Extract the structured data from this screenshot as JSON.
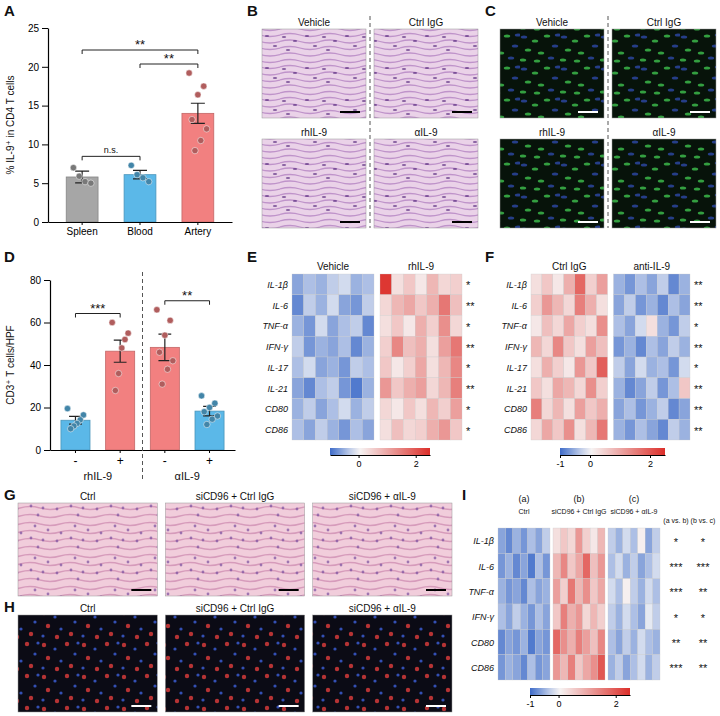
{
  "chart_data": [
    {
      "panel": "A",
      "type": "bar",
      "categories": [
        "Spleen",
        "Blood",
        "Artery"
      ],
      "values": [
        5.8,
        6.1,
        14.0
      ],
      "errors": [
        0.75,
        0.55,
        1.3
      ],
      "points": [
        [
          7.0,
          5.9,
          5.2,
          5.0
        ],
        [
          7.3,
          6.1,
          5.7,
          5.2
        ],
        [
          19.2,
          17.5,
          16.4,
          13.2,
          12.0,
          10.5,
          9.2
        ]
      ],
      "colors": [
        "#a6a6a6",
        "#5bb8e8",
        "#f28080"
      ],
      "ylabel": "% IL-9⁺ in CD4 T cells",
      "ylim": [
        0,
        25
      ],
      "yticks": [
        0,
        5,
        10,
        15,
        20,
        25
      ],
      "significance": [
        {
          "between": [
            0,
            1
          ],
          "label": "n.s."
        },
        {
          "between": [
            1,
            2
          ],
          "label": "**"
        },
        {
          "between": [
            0,
            2
          ],
          "label": "**"
        }
      ]
    },
    {
      "panel": "D",
      "type": "bar",
      "categories": [
        "-",
        "+",
        "-",
        "+"
      ],
      "group_labels": [
        "rhIL-9",
        "αIL-9"
      ],
      "values": [
        14.0,
        46.5,
        48.3,
        18.3
      ],
      "errors": [
        1.8,
        5.2,
        6.2,
        2.2
      ],
      "points": [
        [
          19.5,
          16.5,
          14.2,
          12.5,
          11.3,
          10.0
        ],
        [
          60,
          55,
          52,
          48,
          36,
          28
        ],
        [
          66,
          61,
          54,
          46,
          42,
          38,
          31
        ],
        [
          25.5,
          22,
          20,
          18,
          16,
          14.5,
          12
        ]
      ],
      "colors": [
        "#5bb8e8",
        "#f28080",
        "#f28080",
        "#5bb8e8"
      ],
      "ylabel": "CD3⁺ T cells/HPF",
      "ylim": [
        0,
        80
      ],
      "yticks": [
        0,
        20,
        40,
        60,
        80
      ],
      "significance": [
        {
          "between": [
            0,
            1
          ],
          "label": "***"
        },
        {
          "between": [
            2,
            3
          ],
          "label": "**"
        }
      ]
    },
    {
      "panel": "E",
      "type": "heatmap",
      "rows": [
        "IL-1β",
        "IL-6",
        "TNF-α",
        "IFN-γ",
        "IL-17",
        "IL-21",
        "CD80",
        "CD86"
      ],
      "groups": [
        {
          "name": "Vehicle",
          "cells": [
            [
              -0.6,
              -0.4,
              -0.5,
              -0.3,
              -0.2,
              -0.5,
              -0.4
            ],
            [
              -0.8,
              -0.3,
              -0.5,
              -0.2,
              -0.6,
              -0.7,
              -0.3
            ],
            [
              -0.5,
              -0.7,
              -0.2,
              -0.6,
              -0.4,
              -0.3,
              -0.8
            ],
            [
              -0.3,
              -0.7,
              -0.5,
              -0.6,
              -0.4,
              -0.8,
              -0.5
            ],
            [
              -0.4,
              -0.2,
              -0.6,
              -0.5,
              -0.7,
              -0.3,
              -0.4
            ],
            [
              -0.6,
              -0.8,
              -0.4,
              -0.3,
              -0.7,
              -0.9,
              -0.5
            ],
            [
              -0.5,
              -0.3,
              -0.6,
              -0.4,
              -0.2,
              -0.5,
              -0.3
            ],
            [
              -0.4,
              -0.6,
              -0.3,
              -0.5,
              -0.7,
              -0.4,
              -0.6
            ]
          ]
        },
        {
          "name": "rhIL-9",
          "cells": [
            [
              2.4,
              0.3,
              0.6,
              0.2,
              0.8,
              0.4,
              0.5
            ],
            [
              0.4,
              0.8,
              1.0,
              0.6,
              0.9,
              1.6,
              0.7
            ],
            [
              0.3,
              0.6,
              0.2,
              0.9,
              0.5,
              1.3,
              0.4
            ],
            [
              0.5,
              1.4,
              0.7,
              0.9,
              0.3,
              1.1,
              1.6
            ],
            [
              0.6,
              0.2,
              0.5,
              1.0,
              0.3,
              0.8,
              1.4
            ],
            [
              1.2,
              0.6,
              0.9,
              1.1,
              0.4,
              0.8,
              1.5
            ],
            [
              0.4,
              0.2,
              0.6,
              0.3,
              0.8,
              0.5,
              1.1
            ],
            [
              0.3,
              0.7,
              0.4,
              0.5,
              0.9,
              1.2,
              0.6
            ]
          ]
        }
      ],
      "significance": [
        "*",
        "**",
        "*",
        "**",
        "*",
        "**",
        "*",
        "*"
      ],
      "colorbar": {
        "range": [
          -1,
          2.5
        ],
        "center": 0,
        "ticks": [
          0,
          2
        ]
      }
    },
    {
      "panel": "F",
      "type": "heatmap",
      "rows": [
        "IL-1β",
        "IL-6",
        "TNF-α",
        "IFN-γ",
        "IL-17",
        "IL-21",
        "CD80",
        "CD86"
      ],
      "groups": [
        {
          "name": "Ctrl IgG",
          "cells": [
            [
              0.3,
              0.6,
              0.2,
              0.9,
              1.8,
              0.5,
              1.1
            ],
            [
              0.5,
              1.2,
              0.8,
              0.4,
              1.5,
              0.9,
              0.3
            ],
            [
              0.2,
              0.7,
              0.4,
              1.0,
              0.5,
              0.3,
              1.3
            ],
            [
              0.8,
              0.4,
              1.4,
              0.6,
              0.3,
              1.1,
              0.7
            ],
            [
              0.3,
              0.9,
              0.5,
              0.2,
              1.2,
              0.6,
              1.9
            ],
            [
              0.6,
              0.3,
              1.0,
              0.8,
              0.4,
              1.3,
              0.5
            ],
            [
              1.5,
              0.4,
              0.8,
              0.3,
              1.1,
              0.6,
              0.9
            ],
            [
              0.4,
              1.0,
              0.6,
              1.3,
              0.3,
              0.8,
              1.6
            ]
          ]
        },
        {
          "name": "anti-IL-9",
          "cells": [
            [
              -0.5,
              -0.7,
              -0.4,
              -0.6,
              -0.3,
              -0.8,
              -0.5
            ],
            [
              -0.6,
              -0.3,
              -0.7,
              -0.5,
              -0.8,
              -0.4,
              -0.6
            ],
            [
              -0.4,
              -0.6,
              -0.2,
              0.3,
              -0.5,
              -0.7,
              -0.3
            ],
            [
              -0.7,
              -0.5,
              -0.8,
              -0.4,
              -0.6,
              -0.3,
              -0.5
            ],
            [
              -0.3,
              -0.6,
              -0.2,
              -0.5,
              -0.4,
              -0.7,
              -0.2
            ],
            [
              -0.5,
              -0.8,
              -0.6,
              -0.3,
              -0.7,
              -0.4,
              0.6
            ],
            [
              -0.6,
              -0.4,
              -0.7,
              -0.5,
              -0.3,
              -0.8,
              -0.6
            ],
            [
              -0.5,
              -0.7,
              -0.4,
              -0.6,
              -0.8,
              -0.3,
              -0.5
            ]
          ]
        }
      ],
      "significance": [
        "**",
        "**",
        "*",
        "**",
        "*",
        "**",
        "**",
        "**"
      ],
      "colorbar": {
        "range": [
          -1,
          2.5
        ],
        "center": 0,
        "ticks": [
          -1,
          0,
          2
        ]
      }
    },
    {
      "panel": "I",
      "type": "heatmap",
      "rows": [
        "IL-1β",
        "IL-6",
        "TNF-α",
        "IFN-γ",
        "CD80",
        "CD86"
      ],
      "groups": [
        {
          "tag": "(a)",
          "name": "Ctrl",
          "cells": [
            [
              -0.6,
              -0.8,
              -0.5,
              -0.7,
              -0.4,
              -0.6,
              -0.3
            ],
            [
              -0.7,
              -0.5,
              -0.8,
              -0.6,
              -0.9,
              -0.4,
              -0.7
            ],
            [
              -0.5,
              -0.7,
              -0.6,
              -0.8,
              -0.4,
              -0.6,
              -0.5
            ],
            [
              -0.4,
              -0.6,
              -0.3,
              -0.5,
              -0.7,
              -0.4,
              -0.6
            ],
            [
              -0.8,
              -0.6,
              -0.7,
              -0.5,
              -0.9,
              -0.6,
              -0.7
            ],
            [
              -0.7,
              -0.5,
              -0.6,
              -0.8,
              -0.4,
              -0.7,
              -0.6
            ]
          ]
        },
        {
          "tag": "(b)",
          "name": "siCD96 + Ctrl IgG",
          "cells": [
            [
              0.3,
              0.6,
              0.4,
              1.2,
              0.5,
              0.2,
              0.8
            ],
            [
              0.8,
              1.4,
              0.6,
              1.0,
              1.8,
              0.7,
              1.2
            ],
            [
              1.1,
              0.5,
              1.6,
              0.8,
              1.3,
              0.6,
              1.0
            ],
            [
              0.6,
              1.5,
              0.9,
              1.2,
              0.4,
              0.8,
              0.5
            ],
            [
              1.8,
              1.3,
              0.9,
              1.5,
              1.1,
              0.7,
              1.4
            ],
            [
              1.2,
              0.8,
              1.5,
              0.6,
              1.0,
              1.3,
              2.0
            ]
          ]
        },
        {
          "tag": "(c)",
          "name": "siCD96 + αIL-9",
          "cells": [
            [
              -0.3,
              -0.5,
              -0.2,
              -0.4,
              0.1,
              -0.6,
              -0.3
            ],
            [
              -0.4,
              -0.2,
              -0.5,
              -0.3,
              -0.6,
              -0.4,
              -0.2
            ],
            [
              -0.2,
              -0.4,
              0.1,
              -0.3,
              -0.5,
              -0.2,
              -0.4
            ],
            [
              -0.3,
              -0.5,
              -0.2,
              -0.4,
              -0.6,
              -0.1,
              -0.3
            ],
            [
              -0.4,
              -0.6,
              -0.3,
              -0.5,
              -0.2,
              -0.4,
              -0.5
            ],
            [
              -0.5,
              -0.3,
              -0.6,
              -0.4,
              -0.2,
              -0.5,
              -0.3
            ]
          ]
        }
      ],
      "comparisons": [
        "(a vs. b)",
        "(b vs. c)"
      ],
      "significance": [
        [
          "*",
          "*"
        ],
        [
          "***",
          "***"
        ],
        [
          "***",
          "**"
        ],
        [
          "*",
          "*"
        ],
        [
          "**",
          "**"
        ],
        [
          "***",
          "**"
        ]
      ],
      "colorbar": {
        "range": [
          -1,
          2.5
        ],
        "center": 0,
        "ticks": [
          -1,
          0,
          2
        ]
      }
    }
  ],
  "images": [
    {
      "panel": "B",
      "labels": [
        "Vehicle",
        "Ctrl IgG",
        "rhIL-9",
        "αIL-9"
      ]
    },
    {
      "panel": "C",
      "labels": [
        "Vehicle",
        "Ctrl IgG",
        "rhIL-9",
        "αIL-9"
      ]
    },
    {
      "panel": "G",
      "labels": [
        "Ctrl",
        "siCD96 + Ctrl IgG",
        "siCD96 + αIL-9"
      ]
    },
    {
      "panel": "H",
      "labels": [
        "Ctrl",
        "siCD96 + Ctrl IgG",
        "siCD96 + αIL-9"
      ]
    }
  ]
}
